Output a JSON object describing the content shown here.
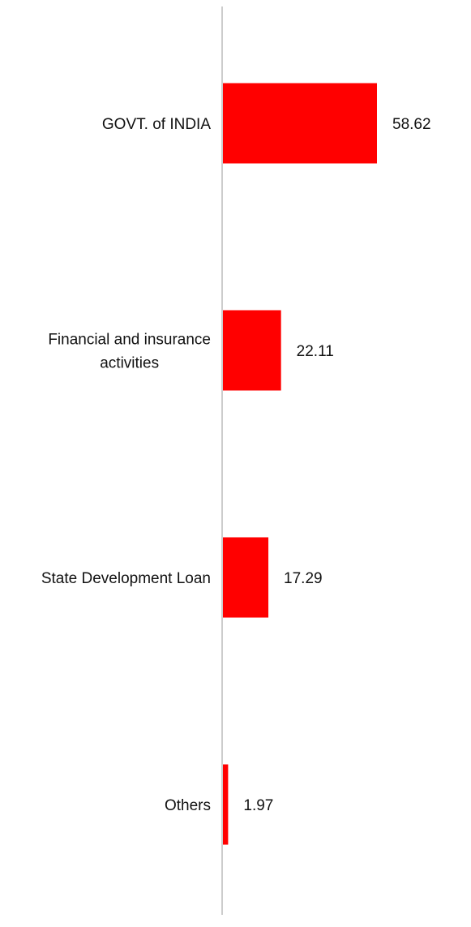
{
  "chart_data": {
    "type": "bar",
    "orientation": "horizontal",
    "categories": [
      [
        "GOVT. of INDIA"
      ],
      [
        "Financial and insurance",
        "activities"
      ],
      [
        "State Development Loan"
      ],
      [
        "Others"
      ]
    ],
    "values": [
      58.62,
      22.11,
      17.29,
      1.97
    ],
    "value_labels": [
      "58.62",
      "22.11",
      "17.29",
      "1.97"
    ],
    "title": "",
    "xlabel": "",
    "ylabel": "",
    "xlim": [
      0,
      60
    ],
    "grid": false,
    "legend": "none",
    "bar_color": "#ff0000",
    "axis_color": "#cccccc"
  }
}
